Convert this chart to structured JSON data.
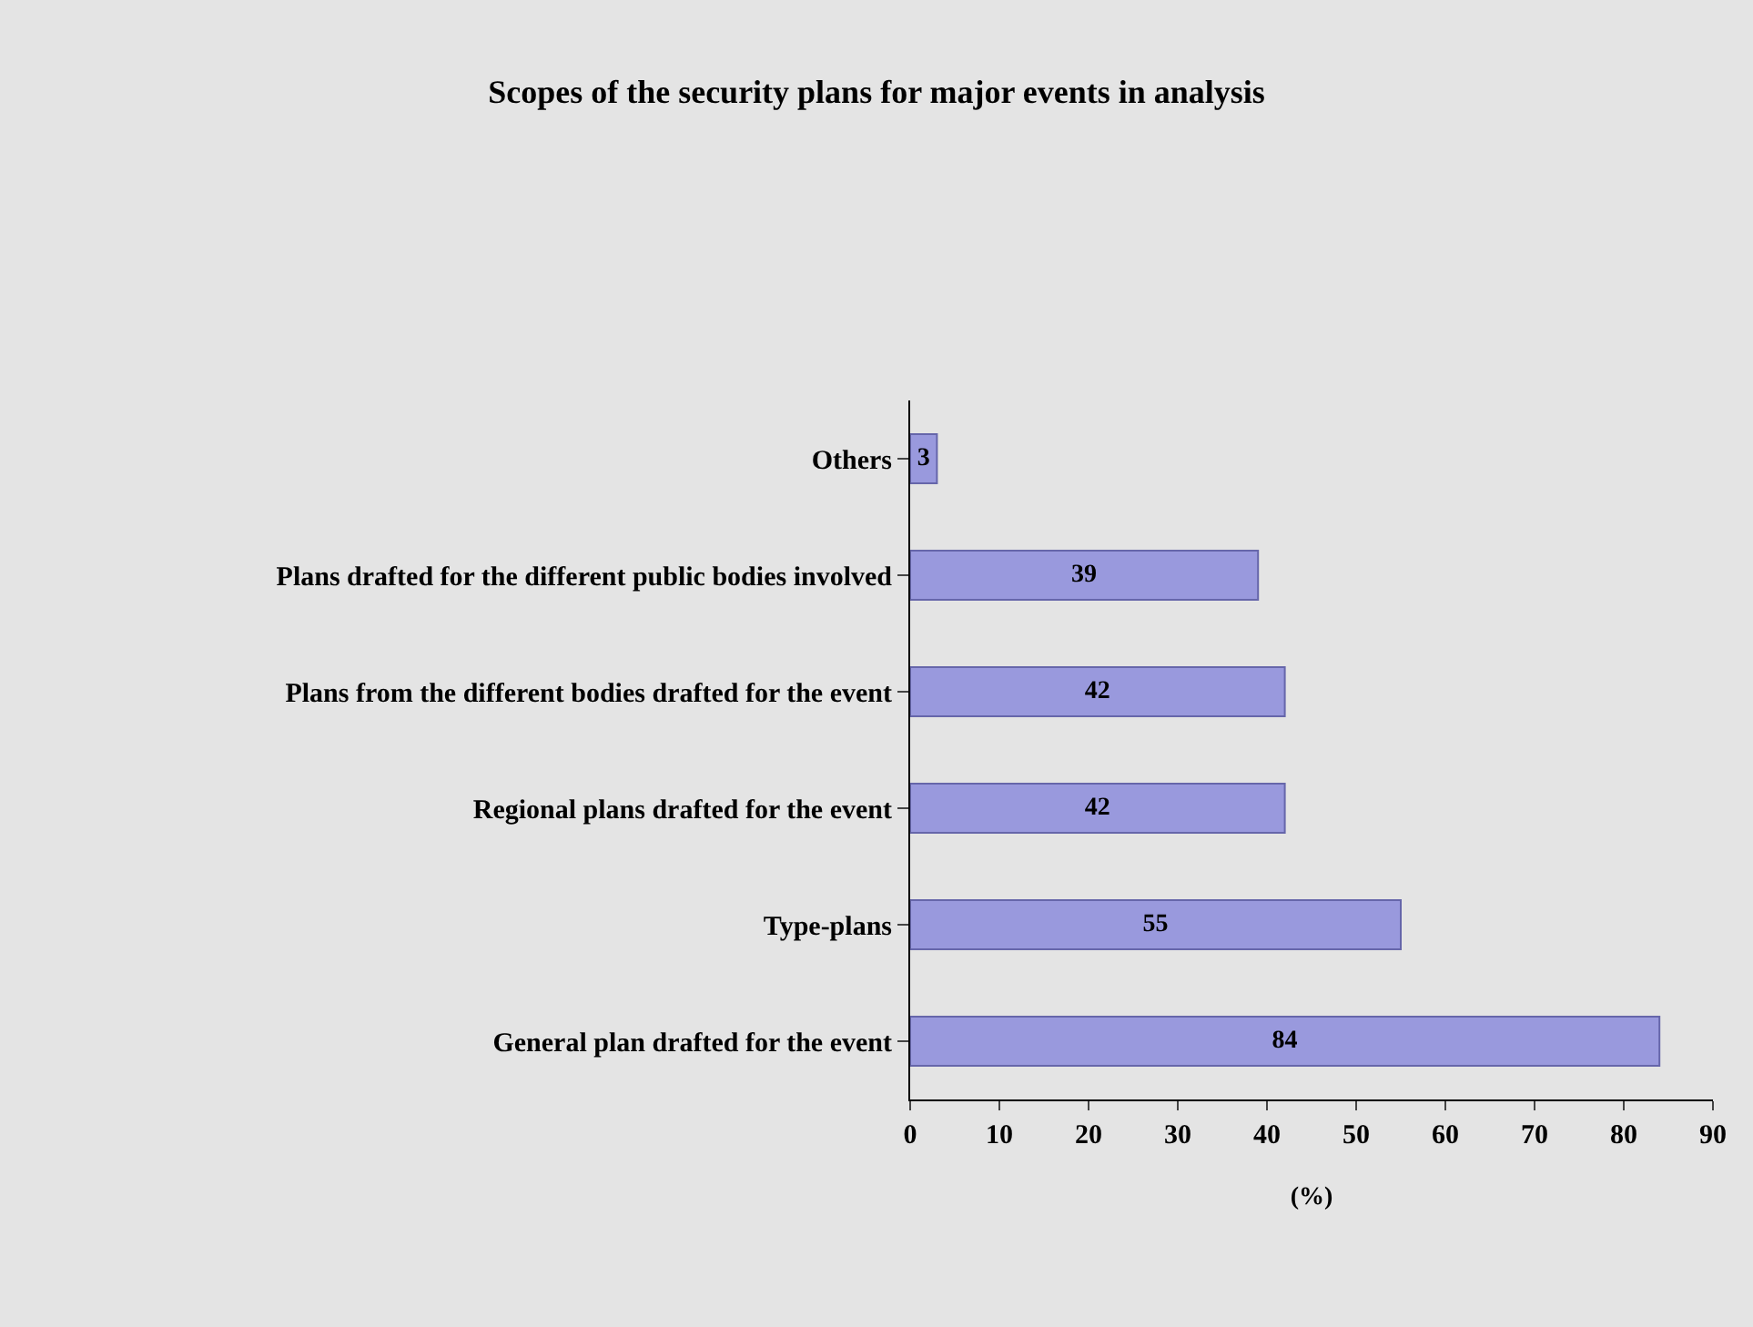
{
  "chart_data": {
    "type": "bar",
    "orientation": "horizontal",
    "title": "Scopes of the security plans for major events in analysis",
    "categories": [
      "Others",
      "Plans drafted for the different public bodies involved",
      "Plans from the different bodies drafted for the event",
      "Regional plans drafted for the event",
      "Type-plans",
      "General plan drafted for the event"
    ],
    "values": [
      3,
      39,
      42,
      42,
      55,
      84
    ],
    "color": "#9999dd",
    "xlim": [
      0,
      90
    ],
    "xticks": [
      0,
      10,
      20,
      30,
      40,
      50,
      60,
      70,
      80,
      90
    ],
    "xlabel": "(%)",
    "data_labels": true,
    "grid": false,
    "legend": false
  }
}
